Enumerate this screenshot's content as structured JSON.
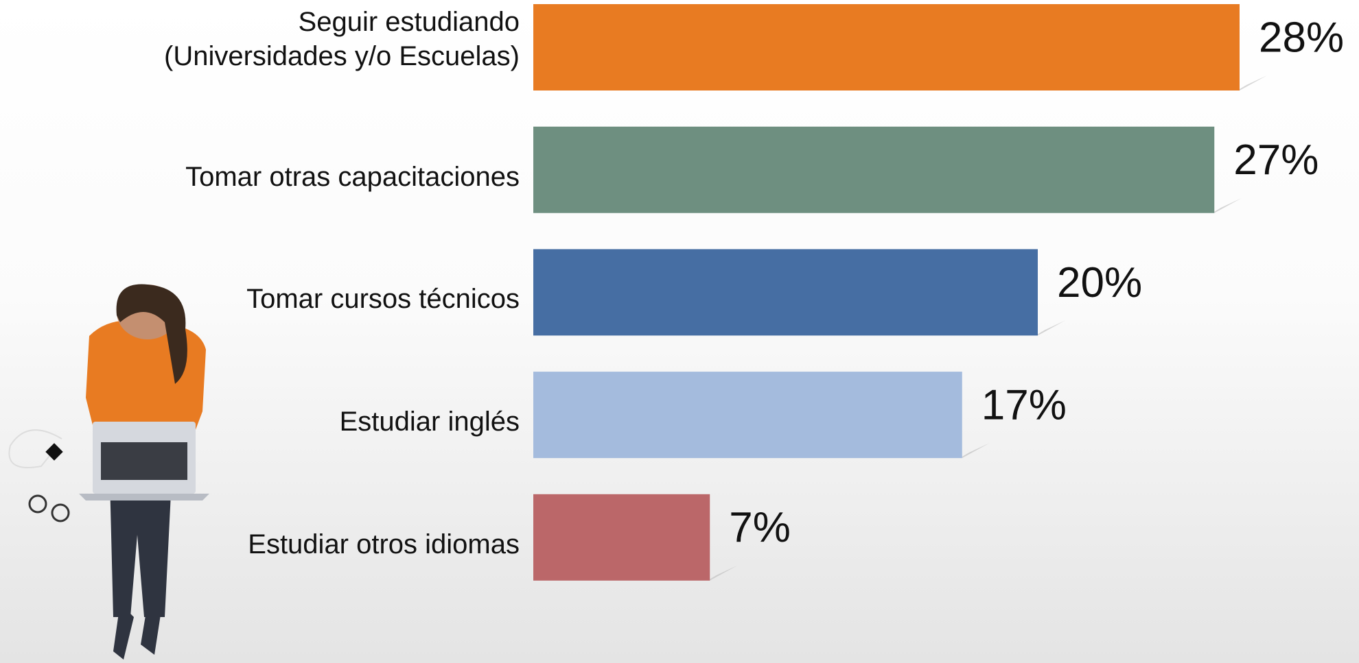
{
  "chart_data": {
    "type": "bar",
    "orientation": "horizontal",
    "categories": [
      "Seguir estudiando\n(Universidades y/o Escuelas)",
      "Tomar otras capacitaciones",
      "Tomar cursos técnicos",
      "Estudiar inglés",
      "Estudiar otros idiomas"
    ],
    "values": [
      28,
      27,
      20,
      17,
      7
    ],
    "value_labels": [
      "28%",
      "27%",
      "20%",
      "17%",
      "7%"
    ],
    "colors": [
      "#e87b22",
      "#6e8f80",
      "#466ea3",
      "#a4bbdd",
      "#bb6769"
    ]
  }
}
